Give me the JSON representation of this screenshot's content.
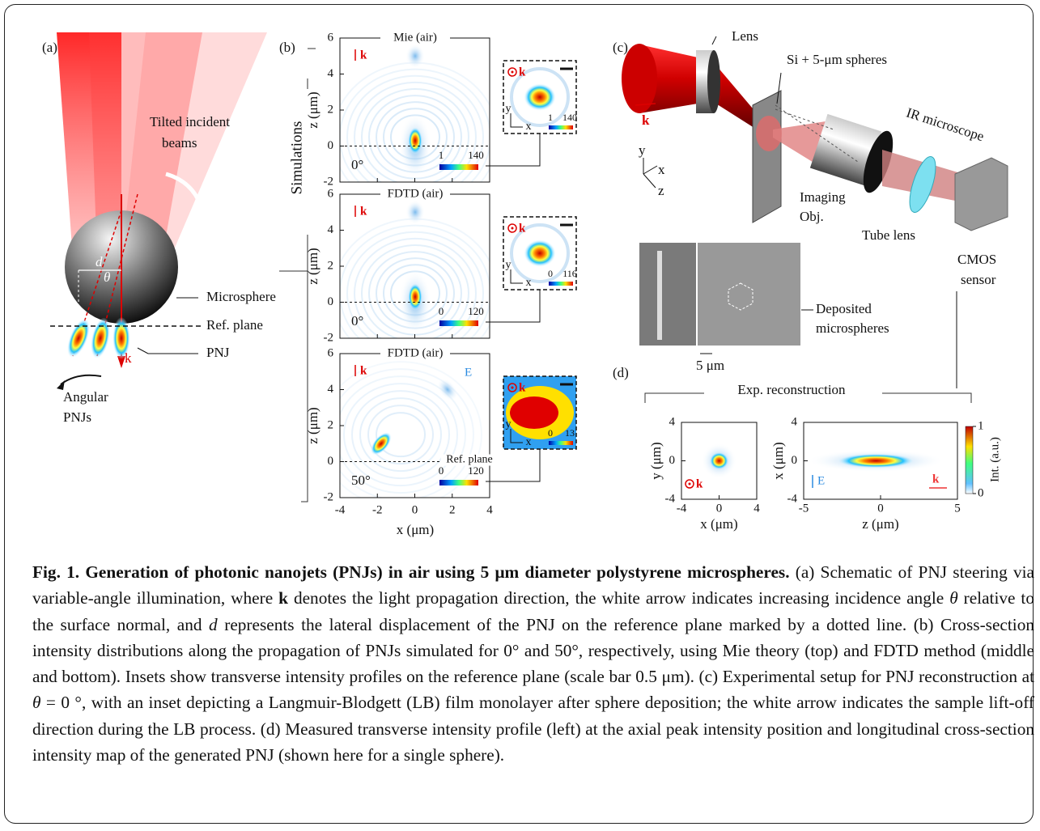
{
  "panel_a": {
    "label": "(a)",
    "beams": [
      "Tilted incident",
      "beams"
    ],
    "microsphere": "Microsphere",
    "ref_plane": "Ref. plane",
    "pnj": "PNJ",
    "k": "k",
    "angular": [
      "Angular",
      "PNJs"
    ],
    "d": "d",
    "theta": "θ"
  },
  "panel_b": {
    "label": "(b)",
    "row_label": "Simulations",
    "xlabel": "x (μm)",
    "ylabel": "z (μm)",
    "xticks": [
      -4,
      -2,
      0,
      2,
      4
    ],
    "yticks": [
      6,
      4,
      2,
      0,
      -2
    ],
    "k": "k",
    "inset_axes": [
      "y",
      "x"
    ],
    "ref_plane": "Ref. plane",
    "e": "E",
    "plots": [
      {
        "title": "Mie (air)",
        "angle": "0°",
        "colorbar": [
          1,
          140
        ],
        "inset_colorbar": [
          1,
          140
        ]
      },
      {
        "title": "FDTD (air)",
        "angle": "0°",
        "colorbar": [
          0,
          120
        ],
        "inset_colorbar": [
          0,
          116
        ]
      },
      {
        "title": "FDTD (air)",
        "angle": "50°",
        "colorbar": [
          0,
          120
        ],
        "inset_colorbar": [
          0,
          13
        ]
      }
    ]
  },
  "panel_c": {
    "label": "(c)",
    "lens": "Lens",
    "spheres": "Si + 5-μm spheres",
    "microscope": "IR microscope",
    "k": "k",
    "axes": [
      "y",
      "x",
      "z"
    ],
    "objective": [
      "Imaging",
      "Obj."
    ],
    "tube_lens": "Tube lens",
    "sensor": [
      "CMOS",
      "sensor"
    ],
    "deposited": [
      "Deposited",
      "microspheres"
    ],
    "scale": "5 μm"
  },
  "panel_d": {
    "label": "(d)",
    "title": "Exp. reconstruction",
    "left": {
      "xlabel": "x (μm)",
      "ylabel": "y (μm)",
      "xticks": [
        -4,
        0,
        4
      ],
      "yticks": [
        4,
        0,
        -4
      ],
      "k": "k"
    },
    "right": {
      "xlabel": "z (μm)",
      "ylabel": "x (μm)",
      "xticks": [
        -5,
        0,
        5
      ],
      "yticks": [
        4,
        0,
        -4
      ],
      "k": "k",
      "e": "E"
    },
    "colorbar": {
      "label": "Int. (a.u.)",
      "ticks": [
        1,
        0
      ]
    }
  },
  "caption": {
    "runs": [
      {
        "text": "Fig. 1. Generation of photonic nanojets (PNJs) in air using 5 μm diameter polystyrene microspheres.",
        "style": "bold"
      },
      {
        "text": " (a) Schematic of PNJ steering via variable-angle illumination, where ",
        "style": "normal"
      },
      {
        "text": "k",
        "style": "bold"
      },
      {
        "text": " denotes the light propagation direction, the white arrow indicates increasing incidence angle ",
        "style": "normal"
      },
      {
        "text": "θ",
        "style": "italic"
      },
      {
        "text": " relative to the surface normal, and ",
        "style": "normal"
      },
      {
        "text": "d",
        "style": "italic"
      },
      {
        "text": " represents the lateral displacement of the PNJ on the reference plane marked by a dotted line. (b) Cross-section intensity distributions along the propagation of PNJs simulated for 0° and 50°, respectively, using Mie theory (top) and FDTD method (middle and bottom). Insets show transverse intensity profiles on the reference plane (scale bar 0.5 μm). (c) Experimental setup for PNJ reconstruction at ",
        "style": "normal"
      },
      {
        "text": "θ",
        "style": "italic"
      },
      {
        "text": " = 0 °, with an inset depicting a Langmuir-Blodgett (LB) film monolayer after sphere deposition; the white arrow indicates the sample lift-off direction during the LB process. (d) Measured transverse intensity profile (left) at the axial peak intensity position and longitudinal cross-section intensity map of the generated PNJ (shown here for a single sphere).",
        "style": "normal"
      }
    ]
  }
}
